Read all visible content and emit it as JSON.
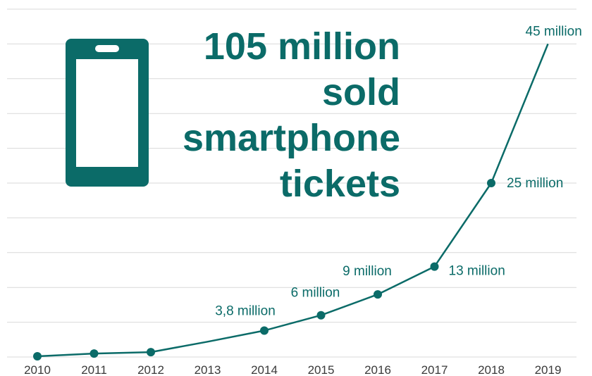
{
  "headline": [
    "105 million",
    "sold",
    "smartphone",
    "tickets"
  ],
  "icon": "smartphone-icon",
  "colors": {
    "accent": "#0b6b68",
    "grid": "#d9d9d9",
    "tick_text": "#3a3a3a"
  },
  "chart_data": {
    "type": "line",
    "title": "",
    "xlabel": "",
    "ylabel": "",
    "grid": true,
    "x": [
      2010,
      2011,
      2012,
      2013,
      2014,
      2015,
      2016,
      2017,
      2018,
      2019
    ],
    "xticks": [
      "2010",
      "2011",
      "2012",
      "2013",
      "2014",
      "2015",
      "2016",
      "2017",
      "2018",
      "2019"
    ],
    "series": [
      {
        "values": [
          0.1,
          0.5,
          0.7,
          2.2,
          3.8,
          6,
          9,
          13,
          25,
          45
        ]
      }
    ],
    "markers": [
      true,
      true,
      true,
      false,
      true,
      true,
      true,
      true,
      true,
      false
    ],
    "data_labels": [
      "",
      "",
      "",
      "",
      "3,8 million",
      "6 million",
      "9 million",
      "13 million",
      "25 million",
      "45 million"
    ],
    "ylim": [
      0,
      50
    ]
  }
}
